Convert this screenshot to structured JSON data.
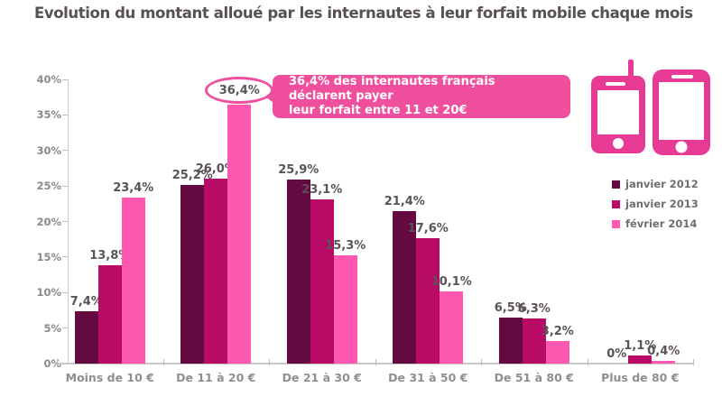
{
  "title": "Evolution du montant alloué par les internautes à leur forfait mobile chaque mois",
  "callout": {
    "line1": "36,4% des internautes français déclarent payer",
    "line2": "leur forfait entre 11 et 20€",
    "bg_color": "#ef4f9d"
  },
  "icons": {
    "feature_phone": "feature-phone-icon",
    "smartphone": "smartphone-icon",
    "color": "#e73a95"
  },
  "legend": [
    {
      "label": "janvier 2012",
      "color": "#650a41"
    },
    {
      "label": "janvier 2013",
      "color": "#b80b66"
    },
    {
      "label": "février 2014",
      "color": "#ff58b1"
    }
  ],
  "chart_data": {
    "type": "bar",
    "title": "Evolution du montant alloué par les internautes à leur forfait mobile chaque mois",
    "categories": [
      "Moins de 10 €",
      "De 11 à 20 €",
      "De 21 à 30 €",
      "De 31 à 50 €",
      "De 51 à 80 €",
      "Plus de 80 €"
    ],
    "series": [
      {
        "name": "janvier 2012",
        "color": "#650a41",
        "values": [
          7.4,
          25.2,
          25.9,
          21.4,
          6.5,
          0
        ]
      },
      {
        "name": "janvier 2013",
        "color": "#b80b66",
        "values": [
          13.8,
          26.0,
          23.1,
          17.6,
          6.3,
          1.1
        ]
      },
      {
        "name": "février 2014",
        "color": "#ff58b1",
        "values": [
          23.4,
          36.4,
          15.3,
          10.1,
          3.2,
          0.4
        ]
      }
    ],
    "value_labels": [
      [
        "7,4%",
        "25,2%",
        "25,9%",
        "21,4%",
        "6,5%",
        "0%"
      ],
      [
        "13,8%",
        "26,0%",
        "23,1%",
        "17,6%",
        "6,3%",
        "1,1%"
      ],
      [
        "23,4%",
        "36,4%",
        "15,3%",
        "10,1%",
        "3,2%",
        "0,4%"
      ]
    ],
    "y_ticks": [
      "0%",
      "5%",
      "10%",
      "15%",
      "20%",
      "25%",
      "30%",
      "35%",
      "40%"
    ],
    "ylim": [
      0,
      40
    ],
    "grid": false,
    "legend_position": "right",
    "highlighted": {
      "series_index": 2,
      "category_index": 1,
      "ellipse_color": "#f0509e"
    }
  }
}
